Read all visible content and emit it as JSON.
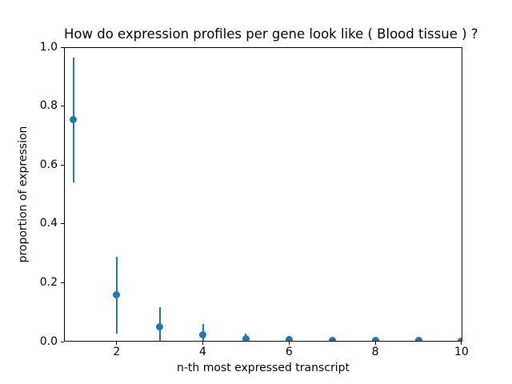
{
  "figure": {
    "title": "How do expression profiles per gene look like ( Blood tissue ) ?",
    "xlabel": "n-th most expressed transcript",
    "ylabel": "proportion of expression"
  },
  "chart_data": {
    "type": "scatter",
    "subtype": "errorbar",
    "title": "How do expression profiles per gene look like ( Blood tissue ) ?",
    "xlabel": "n-th most expressed transcript",
    "ylabel": "proportion of expression",
    "x": [
      1,
      2,
      3,
      4,
      5,
      6,
      7,
      8,
      9,
      10
    ],
    "y": [
      0.755,
      0.158,
      0.051,
      0.022,
      0.011,
      0.008,
      0.005,
      0.004,
      0.003,
      0.002
    ],
    "y_err_low": [
      0.54,
      0.027,
      0.0,
      0.0,
      0.0,
      0.0,
      0.0,
      0.0,
      0.0,
      0.0
    ],
    "y_err_high": [
      0.965,
      0.289,
      0.118,
      0.059,
      0.028,
      0.02,
      0.013,
      0.01,
      0.008,
      0.006
    ],
    "xlim": [
      0.78,
      10.02
    ],
    "ylim": [
      0.0,
      1.0
    ],
    "x_ticks": [
      "2",
      "4",
      "6",
      "8",
      "10"
    ],
    "y_ticks": [
      "0.0",
      "0.2",
      "0.4",
      "0.6",
      "0.8",
      "1.0"
    ],
    "grid": false,
    "legend": null,
    "marker_color": "#1f77b4",
    "errorbar_color": "#1f77b4",
    "text_color": "#000000",
    "background_color": "#ffffff"
  }
}
